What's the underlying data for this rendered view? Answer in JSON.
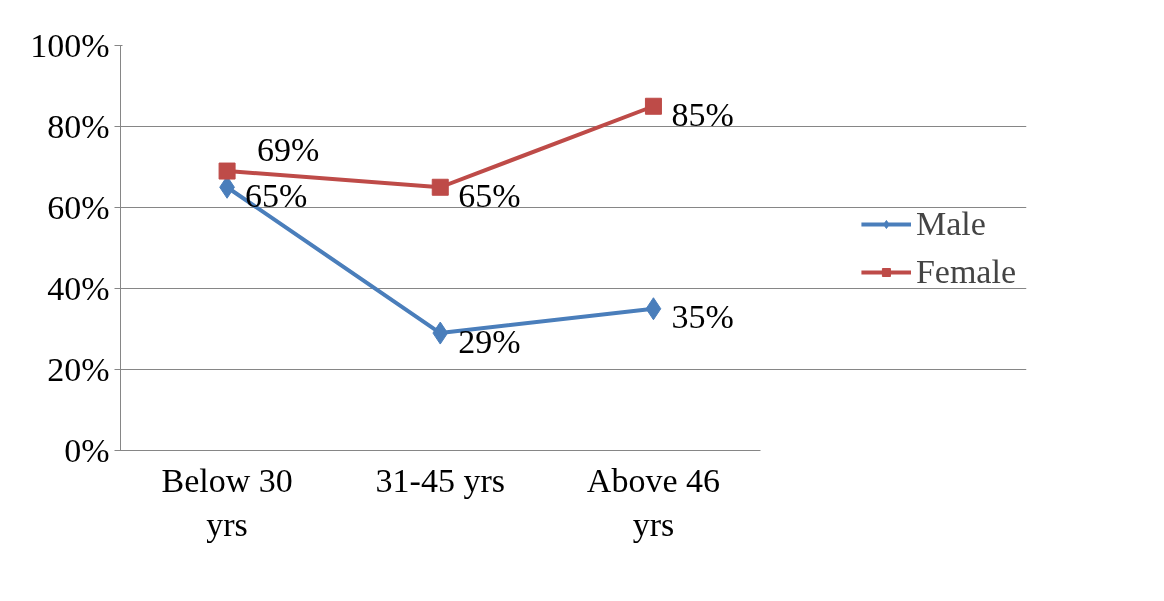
{
  "chart_data": {
    "type": "line",
    "categories": [
      "Below 30 yrs",
      "31-45 yrs",
      "Above 46 yrs"
    ],
    "series": [
      {
        "name": "Male",
        "color": "#4a7ebb",
        "marker": "diamond",
        "values": [
          65,
          29,
          35
        ],
        "value_labels": [
          "65%",
          "29%",
          "35%"
        ]
      },
      {
        "name": "Female",
        "color": "#be4b48",
        "marker": "square",
        "values": [
          69,
          65,
          85
        ],
        "value_labels": [
          "69%",
          "65%",
          "85%"
        ]
      }
    ],
    "ylim": [
      0,
      100
    ],
    "yticks": [
      {
        "value": 0,
        "label": "0%"
      },
      {
        "value": 20,
        "label": "20%"
      },
      {
        "value": 40,
        "label": "40%"
      },
      {
        "value": 60,
        "label": "60%"
      },
      {
        "value": 80,
        "label": "80%"
      },
      {
        "value": 100,
        "label": "100%"
      }
    ],
    "grid": "y",
    "legend": "right",
    "line_style": "solid"
  }
}
